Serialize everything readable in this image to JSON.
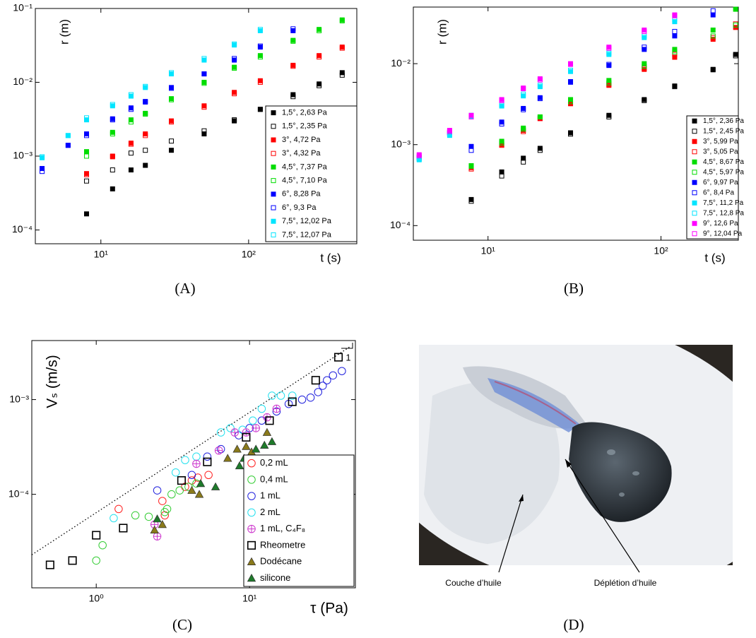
{
  "chart_data": [
    {
      "type": "scatter",
      "xscale": "log",
      "yscale": "log",
      "y_label": "r (m)",
      "x_label": "t (s)",
      "legend": "lower right",
      "xlim": [
        3.6,
        540
      ],
      "ylim": [
        6.5e-05,
        0.1
      ],
      "xticks": [
        {
          "value": 10,
          "label": "10¹"
        },
        {
          "value": 100,
          "label": "10²"
        }
      ],
      "yticks": [
        {
          "value": 0.0001,
          "label": "10⁻⁴"
        },
        {
          "value": 0.001,
          "label": "10⁻³"
        },
        {
          "value": 0.01,
          "label": "10⁻²"
        },
        {
          "value": 0.1,
          "label": "10⁻¹"
        }
      ],
      "x": [
        4,
        6,
        8,
        12,
        16,
        20,
        30,
        50,
        80,
        120,
        200,
        300,
        430
      ],
      "series": [
        {
          "name": "1,5°, 2,63 Pa",
          "color": "#000000",
          "marker": "square",
          "filled": true,
          "values": [
            null,
            null,
            0.000165,
            0.00036,
            0.00065,
            0.00075,
            0.0012,
            0.002,
            0.003,
            0.0043,
            0.0068,
            0.0095,
            0.0135
          ]
        },
        {
          "name": "1,5°, 2,35 Pa",
          "color": "#000000",
          "marker": "square",
          "filled": false,
          "values": [
            null,
            null,
            0.00046,
            0.00065,
            0.0011,
            0.0012,
            0.0016,
            0.0022,
            0.0031,
            0.0043,
            0.0064,
            0.009,
            0.0125
          ]
        },
        {
          "name": "3°, 4,72 Pa",
          "color": "#ff0000",
          "marker": "square",
          "filled": true,
          "values": [
            null,
            null,
            0.00058,
            0.001,
            0.0015,
            0.002,
            0.003,
            0.0048,
            0.0073,
            0.0105,
            0.017,
            0.023,
            0.03
          ]
        },
        {
          "name": "3°, 4,32 Pa",
          "color": "#ff0000",
          "marker": "square",
          "filled": false,
          "values": [
            null,
            null,
            0.00056,
            0.00098,
            0.00145,
            0.0019,
            0.0029,
            0.0046,
            0.007,
            0.01,
            0.0165,
            0.022,
            0.029
          ]
        },
        {
          "name": "4,5°, 7,37 Pa",
          "color": "#00dd00",
          "marker": "square",
          "filled": true,
          "values": [
            null,
            null,
            0.00115,
            0.0021,
            0.0031,
            0.0038,
            0.006,
            0.01,
            0.016,
            0.023,
            0.037,
            0.052,
            0.07
          ]
        },
        {
          "name": "4,5°, 7,10 Pa",
          "color": "#00dd00",
          "marker": "square",
          "filled": false,
          "values": [
            null,
            null,
            0.001,
            0.002,
            0.0029,
            0.0037,
            0.0058,
            0.0097,
            0.0155,
            0.022,
            0.036,
            0.05,
            0.068
          ]
        },
        {
          "name": "6°, 8,28 Pa",
          "color": "#0000ff",
          "marker": "square",
          "filled": true,
          "values": [
            0.00068,
            0.0014,
            0.002,
            0.0032,
            0.0045,
            0.0055,
            0.0085,
            0.013,
            0.02,
            0.03,
            0.05,
            null,
            null
          ]
        },
        {
          "name": "6°, 9,3 Pa",
          "color": "#0000ff",
          "marker": "square",
          "filled": false,
          "values": [
            0.00062,
            0.0014,
            0.0019,
            0.0031,
            0.0043,
            0.0054,
            0.0083,
            0.013,
            0.021,
            0.031,
            0.053,
            null,
            null
          ]
        },
        {
          "name": "7,5°, 12,02 Pa",
          "color": "#00e5ff",
          "marker": "square",
          "filled": true,
          "values": [
            0.00095,
            0.0019,
            0.0031,
            0.0048,
            0.0065,
            0.0085,
            0.013,
            0.02,
            0.032,
            0.05,
            null,
            null,
            null
          ]
        },
        {
          "name": "7,5°, 12,07 Pa",
          "color": "#00e5ff",
          "marker": "square",
          "filled": false,
          "values": [
            0.00098,
            0.0019,
            0.0033,
            0.005,
            0.0068,
            0.0088,
            0.0135,
            0.021,
            0.033,
            0.052,
            null,
            null,
            null
          ]
        }
      ]
    },
    {
      "type": "scatter",
      "xscale": "log",
      "yscale": "log",
      "y_label": "r (m)",
      "x_label": "t (s)",
      "legend": "lower right",
      "xlim": [
        3.7,
        280
      ],
      "ylim": [
        6.6e-05,
        0.05
      ],
      "xticks": [
        {
          "value": 10,
          "label": "10¹"
        },
        {
          "value": 100,
          "label": "10²"
        }
      ],
      "yticks": [
        {
          "value": 0.0001,
          "label": "10⁻⁴"
        },
        {
          "value": 0.001,
          "label": "10⁻³"
        },
        {
          "value": 0.01,
          "label": "10⁻²"
        }
      ],
      "x": [
        4,
        6,
        8,
        12,
        16,
        20,
        30,
        50,
        80,
        120,
        200,
        270
      ],
      "series": [
        {
          "name": "1,5°, 2,36 Pa",
          "color": "#000000",
          "marker": "square",
          "filled": true,
          "values": [
            null,
            null,
            0.00021,
            0.00046,
            0.00068,
            0.0009,
            0.0014,
            0.0023,
            0.0036,
            0.0053,
            0.0085,
            0.013
          ]
        },
        {
          "name": "1,5°, 2,45 Pa",
          "color": "#000000",
          "marker": "square",
          "filled": false,
          "values": [
            null,
            null,
            0.0002,
            0.00041,
            0.00061,
            0.00085,
            0.00135,
            0.0022,
            0.0035,
            0.0052,
            0.0084,
            0.0125
          ]
        },
        {
          "name": "3°, 5,99 Pa",
          "color": "#ff0000",
          "marker": "square",
          "filled": true,
          "values": [
            null,
            null,
            0.00052,
            0.001,
            0.0015,
            0.0021,
            0.0032,
            0.0054,
            0.0085,
            0.012,
            0.02,
            0.028
          ]
        },
        {
          "name": "3°, 5,05 Pa",
          "color": "#ff0000",
          "marker": "square",
          "filled": false,
          "values": [
            null,
            null,
            0.0005,
            0.00098,
            0.00145,
            0.0021,
            0.0033,
            0.0056,
            0.0088,
            0.013,
            0.021,
            0.031
          ]
        },
        {
          "name": "4,5°, 8,67 Pa",
          "color": "#00dd00",
          "marker": "square",
          "filled": true,
          "values": [
            null,
            null,
            0.00055,
            0.0011,
            0.0016,
            0.0022,
            0.0036,
            0.0062,
            0.01,
            0.015,
            0.026,
            0.047
          ]
        },
        {
          "name": "4,5°, 5,97 Pa",
          "color": "#00dd00",
          "marker": "square",
          "filled": false,
          "values": [
            null,
            null,
            0.00054,
            0.00105,
            0.00155,
            0.0022,
            0.0034,
            0.0058,
            0.0093,
            0.014,
            0.022,
            0.03
          ]
        },
        {
          "name": "6°, 9,97 Pa",
          "color": "#0000ff",
          "marker": "square",
          "filled": true,
          "values": [
            0.0007,
            0.0014,
            0.00095,
            0.0019,
            0.0028,
            0.0038,
            0.006,
            0.0095,
            0.015,
            0.022,
            0.04,
            null
          ]
        },
        {
          "name": "6°, 8,4 Pa",
          "color": "#0000ff",
          "marker": "square",
          "filled": false,
          "values": [
            0.00068,
            0.0014,
            0.00085,
            0.0018,
            0.0027,
            0.0037,
            0.0059,
            0.0098,
            0.016,
            0.025,
            0.045,
            null
          ]
        },
        {
          "name": "7,5°, 11,2 Pa",
          "color": "#00e5ff",
          "marker": "square",
          "filled": true,
          "values": [
            0.00065,
            0.0013,
            0.0022,
            0.003,
            0.004,
            0.0052,
            0.008,
            0.013,
            0.021,
            0.033,
            null,
            null
          ]
        },
        {
          "name": "7,5°, 12,8 Pa",
          "color": "#00e5ff",
          "marker": "square",
          "filled": false,
          "values": [
            0.00066,
            0.00135,
            0.0023,
            0.0031,
            0.0042,
            0.0054,
            0.0083,
            0.0135,
            0.022,
            0.035,
            null,
            null
          ]
        },
        {
          "name": "9°, 12,6 Pa",
          "color": "#ff00ff",
          "marker": "square",
          "filled": true,
          "values": [
            0.00075,
            0.0015,
            0.0023,
            0.0036,
            0.005,
            0.0065,
            0.01,
            0.016,
            0.026,
            0.04,
            null,
            null
          ]
        },
        {
          "name": "9°, 12,04 Pa",
          "color": "#ff00ff",
          "marker": "square",
          "filled": false,
          "values": [
            0.00073,
            0.00145,
            0.0022,
            0.0035,
            0.0049,
            0.0063,
            0.0098,
            0.0155,
            0.025,
            0.039,
            null,
            null
          ]
        }
      ]
    },
    {
      "type": "scatter",
      "xscale": "log",
      "yscale": "log",
      "y_label": "Vₛ (m/s)",
      "x_label": "τ (Pa)",
      "legend": "lower right",
      "xlim": [
        0.38,
        49
      ],
      "ylim": [
        1.03e-05,
        0.0042
      ],
      "xticks": [
        {
          "value": 1,
          "label": "10⁰"
        },
        {
          "value": 10,
          "label": "10¹"
        }
      ],
      "yticks": [
        {
          "value": 0.0001,
          "label": "10⁻⁴"
        },
        {
          "value": 0.001,
          "label": "10⁻³"
        }
      ],
      "reference_line": {
        "x": [
          0.38,
          45
        ],
        "y": [
          2.3e-05,
          0.0036
        ]
      },
      "slope_label": "1",
      "series": [
        {
          "name": "0,2 mL",
          "color": "#ff2020",
          "marker": "circle",
          "filled": false,
          "x": [
            1.4,
            2.7,
            2.8,
            3.8,
            4.2,
            4.6,
            5.4
          ],
          "values": [
            7e-05,
            8.5e-05,
            6e-05,
            0.00012,
            0.00014,
            0.00015,
            0.00016
          ]
        },
        {
          "name": "0,4 mL",
          "color": "#33cc33",
          "marker": "circle",
          "filled": false,
          "x": [
            1.0,
            1.1,
            1.8,
            2.2,
            2.8,
            2.9,
            3.1,
            3.5,
            4.0,
            4.5
          ],
          "values": [
            2e-05,
            2.9e-05,
            6e-05,
            5.8e-05,
            6.5e-05,
            7e-05,
            0.0001,
            0.00011,
            0.00012,
            0.00013
          ]
        },
        {
          "name": "1 mL",
          "color": "#2020dd",
          "marker": "circle",
          "filled": false,
          "x": [
            2.5,
            4.2,
            5.3,
            6.5,
            8.5,
            10,
            12,
            15,
            18,
            22,
            25,
            28,
            30,
            32,
            35,
            40
          ],
          "values": [
            0.00011,
            0.00016,
            0.00025,
            0.0003,
            0.00042,
            0.0005,
            0.0006,
            0.00075,
            0.0009,
            0.001,
            0.00105,
            0.0012,
            0.0014,
            0.0016,
            0.0018,
            0.002
          ]
        },
        {
          "name": "2 mL",
          "color": "#22e0ee",
          "marker": "circle",
          "filled": false,
          "x": [
            1.3,
            3.3,
            3.8,
            4.5,
            6.5,
            7.5,
            9,
            10.5,
            12,
            14,
            16,
            19
          ],
          "values": [
            5.6e-05,
            0.00017,
            0.00023,
            0.00025,
            0.00045,
            0.0005,
            0.00048,
            0.0006,
            0.0008,
            0.0011,
            0.0011,
            0.0011
          ]
        },
        {
          "name": "1 mL, C₄F₈",
          "color": "#cc33cc",
          "marker": "circle-plus",
          "filled": false,
          "x": [
            2.4,
            2.5,
            4.5,
            6.3,
            8,
            9.5,
            11,
            13,
            15
          ],
          "values": [
            4.8e-05,
            3.6e-05,
            0.00021,
            0.00029,
            0.00045,
            0.00045,
            0.0005,
            0.00065,
            0.0008
          ]
        },
        {
          "name": "Rheometre",
          "color": "#000000",
          "marker": "square-big",
          "filled": false,
          "x": [
            0.5,
            0.7,
            1.0,
            1.5,
            3.6,
            5.3,
            9.5,
            13.5,
            19,
            27,
            38
          ],
          "values": [
            1.8e-05,
            2e-05,
            3.7e-05,
            4.4e-05,
            0.00014,
            0.00022,
            0.0004,
            0.0006,
            0.00095,
            0.0016,
            0.0028
          ]
        },
        {
          "name": "Dodécane",
          "color": "#8a7a1a",
          "marker": "triangle",
          "filled": true,
          "x": [
            2.4,
            2.7,
            4.2,
            4.7,
            7.2,
            8.3,
            9.5,
            10.3,
            13
          ],
          "values": [
            4.2e-05,
            4.8e-05,
            0.00011,
            0.0001,
            0.00024,
            0.0003,
            0.00032,
            0.00028,
            0.00045
          ]
        },
        {
          "name": "silicone",
          "color": "#1e7a2a",
          "marker": "triangle",
          "filled": true,
          "x": [
            2.5,
            4.8,
            6.0,
            8.6,
            9.2,
            11,
            12.5,
            14
          ],
          "values": [
            5.5e-05,
            0.00013,
            0.00012,
            0.0002,
            0.00024,
            0.0003,
            0.00033,
            0.00036
          ]
        }
      ]
    }
  ],
  "panel_labels": [
    "(A)",
    "(B)",
    "(C)",
    "(D)"
  ],
  "photo": {
    "annotations": [
      "Couche d’huile",
      "Déplétion d’huile"
    ]
  }
}
